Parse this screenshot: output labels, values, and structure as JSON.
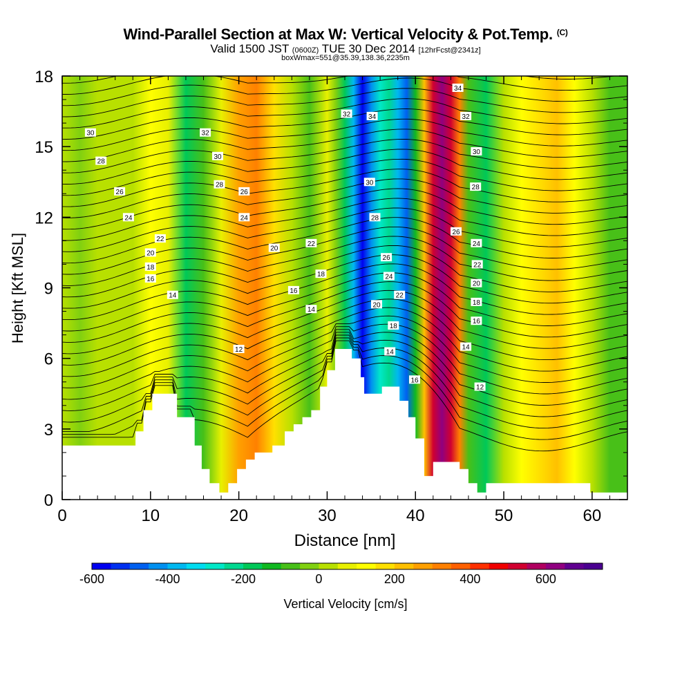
{
  "title": {
    "main": "Wind-Parallel Section at Max W: Vertical Velocity & Pot.Temp.",
    "corner": "(C)",
    "valid_prefix": "Valid 1500 JST",
    "valid_zulu": "(0600Z)",
    "valid_date": "TUE 30 Dec 2014",
    "forecast": "[12hrFcst@2341z]",
    "box_info": "boxWmax=551@35.39,138.36,2235m"
  },
  "chart_data": {
    "type": "contour",
    "xlabel": "Distance [nm]",
    "ylabel": "Height [Kft MSL]",
    "xlim": [
      0,
      64
    ],
    "ylim": [
      0,
      18
    ],
    "x_ticks": [
      0,
      10,
      20,
      30,
      40,
      50,
      60
    ],
    "y_ticks": [
      0,
      3,
      6,
      9,
      12,
      15,
      18
    ],
    "colorbar": {
      "label": "Vertical Velocity [cm/s]",
      "min": -600,
      "max": 750,
      "step": 50,
      "tick_values": [
        -600,
        -400,
        -200,
        0,
        200,
        400,
        600
      ],
      "colors": [
        "#0000f0",
        "#0030f0",
        "#0060f0",
        "#0090f0",
        "#00b8f0",
        "#00dcf0",
        "#00e8c8",
        "#00d890",
        "#00c858",
        "#10b820",
        "#48c018",
        "#80d010",
        "#b8e000",
        "#e8f000",
        "#ffff00",
        "#ffe000",
        "#ffc000",
        "#ffa000",
        "#ff8000",
        "#ff6000",
        "#ff3000",
        "#f00000",
        "#d00030",
        "#b00060",
        "#900080",
        "#600090",
        "#4a0090"
      ]
    },
    "velocity_columns": [
      {
        "x": 0,
        "w": 10
      },
      {
        "x": 2,
        "w": -20
      },
      {
        "x": 4,
        "w": 20
      },
      {
        "x": 6,
        "w": 0
      },
      {
        "x": 8,
        "w": 40
      },
      {
        "x": 10,
        "w": 100
      },
      {
        "x": 12,
        "w": 60
      },
      {
        "x": 14,
        "w": -160
      },
      {
        "x": 16,
        "w": -60
      },
      {
        "x": 18,
        "w": 60
      },
      {
        "x": 20,
        "w": 260
      },
      {
        "x": 22,
        "w": 300
      },
      {
        "x": 24,
        "w": 180
      },
      {
        "x": 26,
        "w": 40
      },
      {
        "x": 28,
        "w": -100
      },
      {
        "x": 30,
        "w": 60
      },
      {
        "x": 31,
        "w": -40
      },
      {
        "x": 32,
        "w": -200
      },
      {
        "x": 33,
        "w": -380
      },
      {
        "x": 34,
        "w": -560
      },
      {
        "x": 35,
        "w": -420
      },
      {
        "x": 36,
        "w": -300
      },
      {
        "x": 37,
        "w": -250
      },
      {
        "x": 38,
        "w": -380
      },
      {
        "x": 39,
        "w": -460
      },
      {
        "x": 40,
        "w": -150
      },
      {
        "x": 41,
        "w": 200
      },
      {
        "x": 42,
        "w": 500
      },
      {
        "x": 43,
        "w": 600
      },
      {
        "x": 44,
        "w": 520
      },
      {
        "x": 45,
        "w": 300
      },
      {
        "x": 46,
        "w": -100
      },
      {
        "x": 48,
        "w": -160
      },
      {
        "x": 50,
        "w": 20
      },
      {
        "x": 52,
        "w": 140
      },
      {
        "x": 54,
        "w": 180
      },
      {
        "x": 56,
        "w": 220
      },
      {
        "x": 58,
        "w": 120
      },
      {
        "x": 60,
        "w": 40
      },
      {
        "x": 62,
        "w": -80
      },
      {
        "x": 64,
        "w": -60
      }
    ],
    "terrain": [
      [
        0,
        2.3
      ],
      [
        8.3,
        2.3
      ],
      [
        8.3,
        2.9
      ],
      [
        9.2,
        2.9
      ],
      [
        9.2,
        3.8
      ],
      [
        10.2,
        3.8
      ],
      [
        10.2,
        4.5
      ],
      [
        13,
        4.5
      ],
      [
        13,
        3.5
      ],
      [
        15,
        3.5
      ],
      [
        15,
        2.3
      ],
      [
        15.8,
        2.3
      ],
      [
        15.8,
        1.3
      ],
      [
        16.7,
        1.3
      ],
      [
        16.7,
        0.7
      ],
      [
        17.8,
        0.7
      ],
      [
        17.8,
        0.3
      ],
      [
        18.8,
        0.3
      ],
      [
        18.8,
        0.7
      ],
      [
        19.8,
        0.7
      ],
      [
        19.8,
        1.3
      ],
      [
        20.8,
        1.3
      ],
      [
        20.8,
        1.7
      ],
      [
        21.8,
        1.7
      ],
      [
        21.8,
        2.0
      ],
      [
        23.8,
        2.0
      ],
      [
        23.8,
        2.3
      ],
      [
        25.2,
        2.3
      ],
      [
        25.2,
        2.9
      ],
      [
        26.2,
        2.9
      ],
      [
        26.2,
        3.2
      ],
      [
        27.2,
        3.2
      ],
      [
        27.2,
        3.5
      ],
      [
        28.2,
        3.5
      ],
      [
        28.2,
        3.8
      ],
      [
        29.2,
        3.8
      ],
      [
        29.2,
        4.8
      ],
      [
        30,
        4.8
      ],
      [
        30,
        5.5
      ],
      [
        30.9,
        5.5
      ],
      [
        30.9,
        6.4
      ],
      [
        32.8,
        6.4
      ],
      [
        32.8,
        6.0
      ],
      [
        33.8,
        6.0
      ],
      [
        33.8,
        5.2
      ],
      [
        34.2,
        5.2
      ],
      [
        34.2,
        4.5
      ],
      [
        36.2,
        4.5
      ],
      [
        36.2,
        4.8
      ],
      [
        38.2,
        4.8
      ],
      [
        38.2,
        4.2
      ],
      [
        39.2,
        4.2
      ],
      [
        39.2,
        3.5
      ],
      [
        40,
        3.5
      ],
      [
        40,
        2.6
      ],
      [
        41,
        2.6
      ],
      [
        41,
        1.0
      ],
      [
        42,
        1.0
      ],
      [
        42,
        1.6
      ],
      [
        45,
        1.6
      ],
      [
        45,
        1.3
      ],
      [
        46,
        1.3
      ],
      [
        46,
        0.7
      ],
      [
        47,
        0.7
      ],
      [
        47,
        0.3
      ],
      [
        48,
        0.3
      ],
      [
        48,
        0.7
      ],
      [
        59.8,
        0.7
      ],
      [
        59.8,
        0.3
      ],
      [
        64,
        0.3
      ]
    ],
    "theta_start_level": 12,
    "theta_label_values": [
      12,
      14,
      16,
      18,
      20,
      22,
      24,
      26,
      28,
      30,
      32,
      34
    ],
    "isentrope_labels": [
      {
        "text": "30",
        "x": 3.2,
        "y": 15.6
      },
      {
        "text": "28",
        "x": 4.4,
        "y": 14.4
      },
      {
        "text": "26",
        "x": 6.5,
        "y": 13.1
      },
      {
        "text": "24",
        "x": 7.5,
        "y": 12.0
      },
      {
        "text": "22",
        "x": 11.1,
        "y": 11.1
      },
      {
        "text": "20",
        "x": 10.0,
        "y": 10.5
      },
      {
        "text": "18",
        "x": 10.0,
        "y": 9.9
      },
      {
        "text": "16",
        "x": 10.0,
        "y": 9.4
      },
      {
        "text": "14",
        "x": 12.5,
        "y": 8.7
      },
      {
        "text": "12",
        "x": 20.0,
        "y": 6.4
      },
      {
        "text": "32",
        "x": 16.2,
        "y": 15.6
      },
      {
        "text": "30",
        "x": 17.6,
        "y": 14.6
      },
      {
        "text": "28",
        "x": 17.8,
        "y": 13.4
      },
      {
        "text": "26",
        "x": 20.6,
        "y": 13.1
      },
      {
        "text": "24",
        "x": 20.6,
        "y": 12.0
      },
      {
        "text": "20",
        "x": 24.0,
        "y": 10.7
      },
      {
        "text": "22",
        "x": 28.2,
        "y": 10.9
      },
      {
        "text": "18",
        "x": 29.3,
        "y": 9.6
      },
      {
        "text": "16",
        "x": 26.2,
        "y": 8.9
      },
      {
        "text": "14",
        "x": 28.2,
        "y": 8.1
      },
      {
        "text": "32",
        "x": 32.2,
        "y": 16.4
      },
      {
        "text": "34",
        "x": 35.1,
        "y": 16.3
      },
      {
        "text": "30",
        "x": 34.8,
        "y": 13.5
      },
      {
        "text": "28",
        "x": 35.4,
        "y": 12.0
      },
      {
        "text": "26",
        "x": 36.7,
        "y": 10.3
      },
      {
        "text": "24",
        "x": 37.0,
        "y": 9.5
      },
      {
        "text": "22",
        "x": 38.2,
        "y": 8.7
      },
      {
        "text": "20",
        "x": 35.6,
        "y": 8.3
      },
      {
        "text": "18",
        "x": 37.5,
        "y": 7.4
      },
      {
        "text": "14",
        "x": 37.1,
        "y": 6.3
      },
      {
        "text": "16",
        "x": 39.9,
        "y": 5.1
      },
      {
        "text": "34",
        "x": 44.8,
        "y": 17.5
      },
      {
        "text": "32",
        "x": 45.7,
        "y": 16.3
      },
      {
        "text": "30",
        "x": 46.9,
        "y": 14.8
      },
      {
        "text": "28",
        "x": 46.8,
        "y": 13.3
      },
      {
        "text": "26",
        "x": 44.6,
        "y": 11.4
      },
      {
        "text": "24",
        "x": 46.9,
        "y": 10.9
      },
      {
        "text": "22",
        "x": 47.0,
        "y": 10.0
      },
      {
        "text": "20",
        "x": 46.9,
        "y": 9.2
      },
      {
        "text": "18",
        "x": 46.9,
        "y": 8.4
      },
      {
        "text": "16",
        "x": 46.9,
        "y": 7.6
      },
      {
        "text": "14",
        "x": 45.7,
        "y": 6.5
      },
      {
        "text": "12",
        "x": 47.3,
        "y": 4.8
      }
    ]
  }
}
